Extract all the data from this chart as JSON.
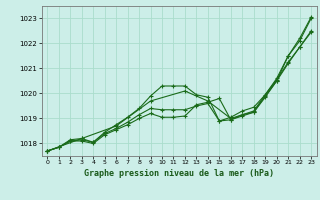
{
  "title": "Graphe pression niveau de la mer (hPa)",
  "bg_color": "#cceee8",
  "grid_color": "#aaddcc",
  "line_color": "#1a6b1a",
  "xlim": [
    -0.5,
    23.5
  ],
  "ylim": [
    1017.5,
    1023.5
  ],
  "yticks": [
    1018,
    1019,
    1020,
    1021,
    1022,
    1023
  ],
  "xticks": [
    0,
    1,
    2,
    3,
    4,
    5,
    6,
    7,
    8,
    9,
    10,
    11,
    12,
    13,
    14,
    15,
    16,
    17,
    18,
    19,
    20,
    21,
    22,
    23
  ],
  "lines": [
    {
      "x": [
        0,
        1,
        2,
        3,
        4,
        5,
        6,
        7,
        8,
        9,
        10,
        11,
        12,
        13,
        14,
        15,
        16,
        17,
        18,
        19,
        20,
        21,
        22,
        23
      ],
      "y": [
        1017.7,
        1017.85,
        1018.15,
        1018.2,
        1018.05,
        1018.45,
        1018.75,
        1019.05,
        1019.4,
        1019.9,
        1020.3,
        1020.3,
        1020.3,
        1019.95,
        1019.85,
        1018.9,
        1018.95,
        1019.15,
        1019.25,
        1019.85,
        1020.5,
        1021.5,
        1022.1,
        1023.0
      ]
    },
    {
      "x": [
        0,
        1,
        2,
        3,
        4,
        5,
        6,
        7,
        8,
        9,
        10,
        11,
        12,
        13,
        14,
        15,
        16,
        17,
        18,
        19,
        20,
        21,
        22,
        23
      ],
      "y": [
        1017.7,
        1017.85,
        1018.1,
        1018.1,
        1018.0,
        1018.35,
        1018.55,
        1018.75,
        1019.0,
        1019.2,
        1019.05,
        1019.05,
        1019.1,
        1019.55,
        1019.65,
        1019.8,
        1018.95,
        1019.1,
        1019.25,
        1019.9,
        1020.5,
        1021.2,
        1021.85,
        1022.5
      ]
    },
    {
      "x": [
        0,
        1,
        2,
        3,
        4,
        5,
        6,
        7,
        8,
        9,
        10,
        11,
        12,
        13,
        14,
        15,
        16,
        17,
        18,
        19,
        20,
        21,
        22,
        23
      ],
      "y": [
        1017.7,
        1017.85,
        1018.1,
        1018.15,
        1018.05,
        1018.4,
        1018.6,
        1018.85,
        1019.15,
        1019.4,
        1019.35,
        1019.35,
        1019.35,
        1019.5,
        1019.6,
        1018.9,
        1019.05,
        1019.3,
        1019.45,
        1019.95,
        1020.55,
        1021.25,
        1021.85,
        1022.45
      ]
    },
    {
      "x": [
        0,
        3,
        6,
        9,
        12,
        14,
        16,
        18,
        20,
        21,
        22,
        23
      ],
      "y": [
        1017.7,
        1018.2,
        1018.7,
        1019.7,
        1020.1,
        1019.7,
        1019.0,
        1019.3,
        1020.6,
        1021.5,
        1022.2,
        1023.05
      ]
    }
  ]
}
